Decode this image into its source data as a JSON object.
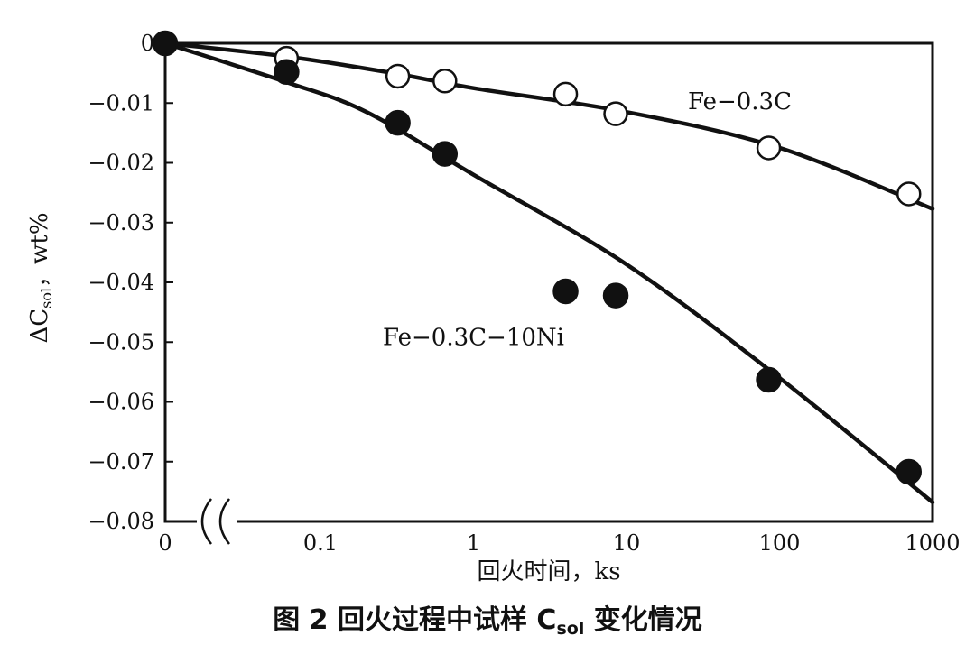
{
  "chart_data": {
    "type": "scatter",
    "caption_prefix": "图 2  回火过程中试样 C",
    "caption_sub": "sol",
    "caption_suffix": " 变化情况",
    "xlabel": "回火时间，ks",
    "ylabel_prefix": "ΔC",
    "ylabel_sub": "sol",
    "ylabel_suffix": "，wt%",
    "x_scale": "log",
    "x_break": true,
    "xlim": [
      0.02,
      1000
    ],
    "ylim": [
      -0.08,
      0
    ],
    "x_ticks": [
      {
        "value": 0,
        "label": "0"
      },
      {
        "value": 0.1,
        "label": "0.1"
      },
      {
        "value": 1,
        "label": "1"
      },
      {
        "value": 10,
        "label": "10"
      },
      {
        "value": 100,
        "label": "100"
      },
      {
        "value": 1000,
        "label": "1000"
      }
    ],
    "y_ticks": [
      {
        "value": 0,
        "label": "0"
      },
      {
        "value": -0.01,
        "label": "−0.01"
      },
      {
        "value": -0.02,
        "label": "−0.02"
      },
      {
        "value": -0.03,
        "label": "−0.03"
      },
      {
        "value": -0.04,
        "label": "−0.04"
      },
      {
        "value": -0.05,
        "label": "−0.05"
      },
      {
        "value": -0.06,
        "label": "−0.06"
      },
      {
        "value": -0.07,
        "label": "−0.07"
      },
      {
        "value": -0.08,
        "label": "−0.08"
      }
    ],
    "series": [
      {
        "name": "Fe−0.3C",
        "marker": "open-circle",
        "points": [
          {
            "x": 0,
            "y": 0
          },
          {
            "x": 0.06,
            "y": -0.0025
          },
          {
            "x": 0.32,
            "y": -0.0055
          },
          {
            "x": 0.65,
            "y": -0.0063
          },
          {
            "x": 4,
            "y": -0.0085
          },
          {
            "x": 8.5,
            "y": -0.0118
          },
          {
            "x": 85,
            "y": -0.0175
          },
          {
            "x": 700,
            "y": -0.0252
          }
        ],
        "curve": [
          {
            "x": 0,
            "y": 0
          },
          {
            "x": 0.06,
            "y": -0.0022
          },
          {
            "x": 0.3,
            "y": -0.005
          },
          {
            "x": 1,
            "y": -0.0075
          },
          {
            "x": 10,
            "y": -0.0115
          },
          {
            "x": 100,
            "y": -0.0175
          },
          {
            "x": 1000,
            "y": -0.0277
          }
        ]
      },
      {
        "name": "Fe−0.3C−10Ni",
        "marker": "filled-circle",
        "points": [
          {
            "x": 0,
            "y": 0
          },
          {
            "x": 0.06,
            "y": -0.0048
          },
          {
            "x": 0.32,
            "y": -0.0133
          },
          {
            "x": 0.65,
            "y": -0.0185
          },
          {
            "x": 4,
            "y": -0.0415
          },
          {
            "x": 8.5,
            "y": -0.0422
          },
          {
            "x": 85,
            "y": -0.0563
          },
          {
            "x": 700,
            "y": -0.0717
          }
        ],
        "curve": [
          {
            "x": 0,
            "y": 0
          },
          {
            "x": 0.06,
            "y": -0.0065
          },
          {
            "x": 0.2,
            "y": -0.0115
          },
          {
            "x": 1,
            "y": -0.022
          },
          {
            "x": 10,
            "y": -0.037
          },
          {
            "x": 100,
            "y": -0.056
          },
          {
            "x": 1000,
            "y": -0.0768
          }
        ]
      }
    ],
    "annotations": [
      {
        "text": "Fe−0.3C",
        "anchor_x": 55,
        "anchor_y": -0.011
      },
      {
        "text": "Fe−0.3C−10Ni",
        "anchor_x": 1.0,
        "anchor_y": -0.0505
      }
    ]
  }
}
